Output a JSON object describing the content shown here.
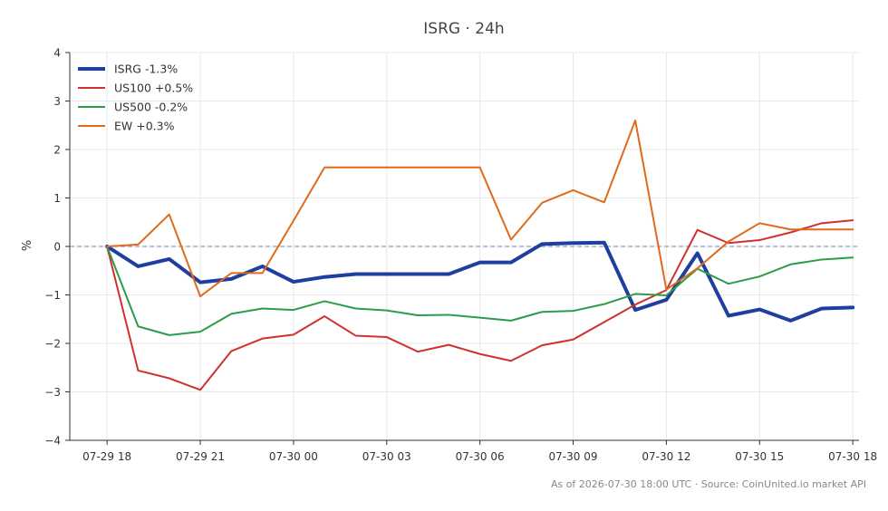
{
  "chart_data": {
    "type": "line",
    "title": "ISRG · 24h",
    "xlabel": "",
    "ylabel": "%",
    "ylim": [
      -4,
      4
    ],
    "xlim": [
      -1.2,
      24.2
    ],
    "yticks": [
      "4",
      "3",
      "2",
      "1",
      "0",
      "−1",
      "−2",
      "−3",
      "−4"
    ],
    "ytick_values": [
      4,
      3,
      2,
      1,
      0,
      -1,
      -2,
      -3,
      -4
    ],
    "xticks": [
      "07-29 18",
      "07-29 21",
      "07-30 00",
      "07-30 03",
      "07-30 06",
      "07-30 09",
      "07-30 12",
      "07-30 15",
      "07-30 18"
    ],
    "xtick_positions": [
      0,
      3,
      6,
      9,
      12,
      15,
      18,
      21,
      24
    ],
    "x": [
      "07-29 18",
      "07-29 19",
      "07-29 20",
      "07-29 21",
      "07-29 22",
      "07-29 23",
      "07-30 00",
      "07-30 01",
      "07-30 02",
      "07-30 03",
      "07-30 04",
      "07-30 05",
      "07-30 06",
      "07-30 07",
      "07-30 08",
      "07-30 09",
      "07-30 10",
      "07-30 11",
      "07-30 12",
      "07-30 13",
      "07-30 14",
      "07-30 15",
      "07-30 16",
      "07-30 17",
      "07-30 18"
    ],
    "grid": true,
    "legend_position": "top-left",
    "zero_line": true,
    "series": [
      {
        "name": "ISRG -1.3%",
        "color": "#1f3f9f",
        "width": 4,
        "values": [
          0.0,
          -0.41,
          -0.26,
          -0.74,
          -0.67,
          -0.41,
          -0.73,
          -0.63,
          -0.57,
          -0.57,
          -0.57,
          -0.57,
          -0.33,
          -0.33,
          0.05,
          0.07,
          0.08,
          -1.31,
          -1.1,
          -0.14,
          -1.43,
          -1.3,
          -1.53,
          -1.28,
          -1.26
        ]
      },
      {
        "name": "US100 +0.5%",
        "color": "#d03030",
        "width": 2,
        "values": [
          0.0,
          -2.56,
          -2.72,
          -2.96,
          -2.16,
          -1.9,
          -1.82,
          -1.44,
          -1.84,
          -1.87,
          -2.17,
          -2.03,
          -2.22,
          -2.36,
          -2.04,
          -1.92,
          -1.56,
          -1.2,
          -0.9,
          0.34,
          0.07,
          0.13,
          0.29,
          0.48,
          0.54
        ]
      },
      {
        "name": "US500 -0.2%",
        "color": "#2a9d48",
        "width": 2,
        "values": [
          0.0,
          -1.65,
          -1.83,
          -1.76,
          -1.39,
          -1.28,
          -1.31,
          -1.13,
          -1.28,
          -1.32,
          -1.42,
          -1.41,
          -1.47,
          -1.53,
          -1.35,
          -1.33,
          -1.19,
          -0.98,
          -1.01,
          -0.46,
          -0.77,
          -0.62,
          -0.37,
          -0.27,
          -0.23
        ]
      },
      {
        "name": "EW +0.3%",
        "color": "#e06a1c",
        "width": 2,
        "values": [
          0.0,
          0.04,
          0.66,
          -1.03,
          -0.55,
          -0.55,
          0.53,
          1.63,
          1.63,
          1.63,
          1.63,
          1.63,
          1.63,
          0.14,
          0.9,
          1.16,
          0.91,
          2.6,
          -0.89,
          -0.45,
          0.1,
          0.48,
          0.35,
          0.35,
          0.35
        ]
      }
    ],
    "annotation": "As of 2026-07-30 18:00 UTC · Source: CoinUnited.io market API"
  },
  "colors": {
    "grid": "#e8e8e8",
    "axis": "#333333",
    "zero_line": "#8aa0c8",
    "text": "#333333",
    "footer_text": "#888888"
  }
}
